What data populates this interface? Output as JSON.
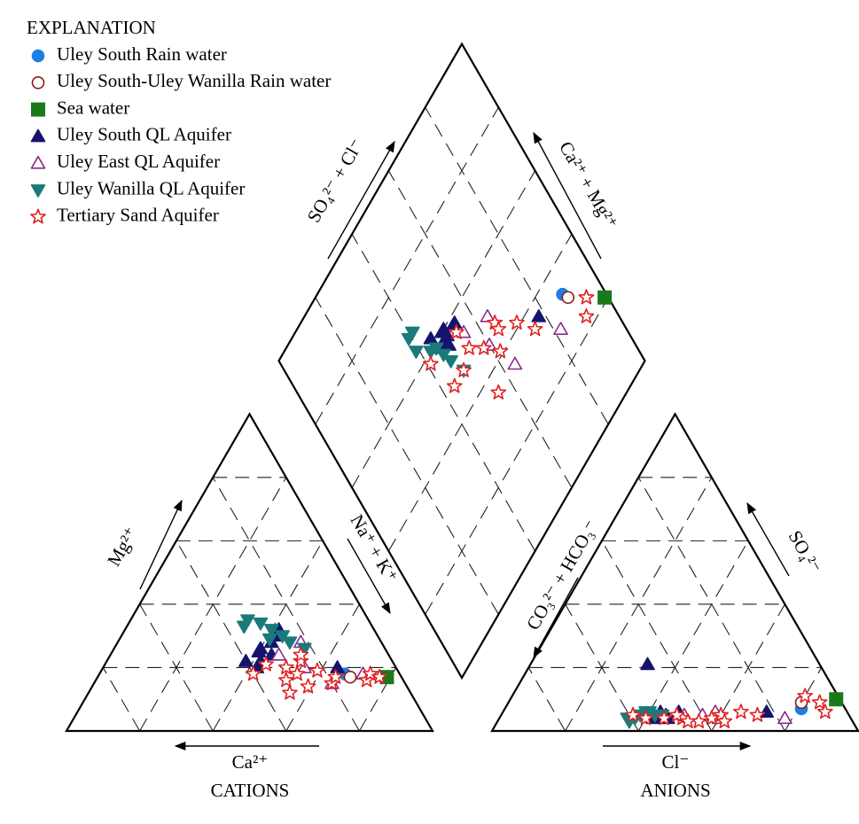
{
  "chart_data": {
    "type": "piper",
    "legend_title": "EXPLANATION",
    "legend": "upper left",
    "lim": [
      0,
      100
    ],
    "ternary_ticks": [
      20,
      40,
      60,
      80
    ],
    "grid": true,
    "labels": {
      "diamond_left": "SO₄²⁻ + Cl⁻",
      "diamond_right": "Ca²⁺ + Mg²⁺",
      "cation_left": "Mg²⁺",
      "cation_right": "Na⁺ + K⁺",
      "cation_bottom": "Ca²⁺",
      "cation_title": "CATIONS",
      "anion_left": "CO₃²⁻ + HCO₃⁻",
      "anion_right": "SO₄²⁻",
      "anion_bottom": "Cl⁻",
      "anion_title": "ANIONS"
    },
    "series": [
      {
        "name": "Uley South Rain water",
        "color": "#1e7fe0",
        "marker": "circle",
        "cations": [
          [
            15,
            18
          ]
        ],
        "anions": [
          [
            81,
            7
          ]
        ]
      },
      {
        "name": "Uley South-Uley Wanilla Rain water",
        "color": "#8b1a1a",
        "marker": "circle-open",
        "cations": [
          [
            14,
            17
          ]
        ],
        "anions": [
          [
            80,
            9
          ]
        ]
      },
      {
        "name": "Sea water",
        "color": "#1a7a1a",
        "marker": "square",
        "cations": [
          [
            4,
            17
          ]
        ],
        "anions": [
          [
            89,
            10
          ]
        ]
      },
      {
        "name": "Uley South QL Aquifer",
        "color": "#14146e",
        "marker": "triangle",
        "cations": [
          [
            32,
            24
          ],
          [
            30,
            28
          ],
          [
            36,
            22
          ],
          [
            34,
            26
          ],
          [
            38,
            20
          ],
          [
            28,
            30
          ],
          [
            35,
            25
          ],
          [
            40,
            22
          ],
          [
            26,
            32
          ],
          [
            16,
            20
          ]
        ],
        "anions": [
          [
            44,
            5
          ],
          [
            42,
            4
          ],
          [
            48,
            6
          ],
          [
            45,
            5
          ],
          [
            32,
            21
          ],
          [
            46,
            4
          ],
          [
            43,
            6
          ],
          [
            40,
            5
          ],
          [
            44,
            4
          ],
          [
            72,
            6
          ]
        ]
      },
      {
        "name": "Uley East QL Aquifer",
        "color": "#8a2a8a",
        "marker": "triangle-open",
        "cations": [
          [
            22,
            28
          ],
          [
            25,
            20
          ],
          [
            20,
            15
          ],
          [
            30,
            24
          ],
          [
            10,
            18
          ]
        ],
        "anions": [
          [
            60,
            4
          ],
          [
            55,
            5
          ],
          [
            58,
            6
          ],
          [
            50,
            5
          ],
          [
            78,
            4
          ]
        ]
      },
      {
        "name": "Uley Wanilla QL Aquifer",
        "color": "#1a7a7a",
        "marker": "triangle-down",
        "cations": [
          [
            30,
            34
          ],
          [
            28,
            32
          ],
          [
            26,
            30
          ],
          [
            33,
            35
          ],
          [
            25,
            28
          ],
          [
            35,
            33
          ],
          [
            22,
            26
          ],
          [
            30,
            29
          ]
        ],
        "anions": [
          [
            35,
            4
          ],
          [
            38,
            5
          ],
          [
            40,
            6
          ],
          [
            36,
            3
          ],
          [
            42,
            5
          ],
          [
            37,
            4
          ],
          [
            44,
            5
          ],
          [
            39,
            6
          ]
        ]
      },
      {
        "name": "Tertiary Sand Aquifer",
        "color": "#e02020",
        "marker": "star-open",
        "cations": [
          [
            30,
            20
          ],
          [
            28,
            18
          ],
          [
            25,
            22
          ],
          [
            32,
            16
          ],
          [
            22,
            19
          ],
          [
            20,
            15
          ],
          [
            35,
            21
          ],
          [
            27,
            14
          ],
          [
            18,
            17
          ],
          [
            24,
            24
          ],
          [
            10,
            16
          ],
          [
            8,
            18
          ],
          [
            6,
            17
          ],
          [
            33,
            12
          ],
          [
            40,
            18
          ]
        ],
        "anions": [
          [
            50,
            4
          ],
          [
            55,
            3
          ],
          [
            60,
            5
          ],
          [
            45,
            4
          ],
          [
            65,
            6
          ],
          [
            52,
            3
          ],
          [
            48,
            5
          ],
          [
            58,
            4
          ],
          [
            70,
            5
          ],
          [
            40,
            4
          ],
          [
            85,
            9
          ],
          [
            88,
            6
          ],
          [
            80,
            11
          ],
          [
            62,
            3
          ],
          [
            36,
            5
          ]
        ]
      }
    ]
  }
}
